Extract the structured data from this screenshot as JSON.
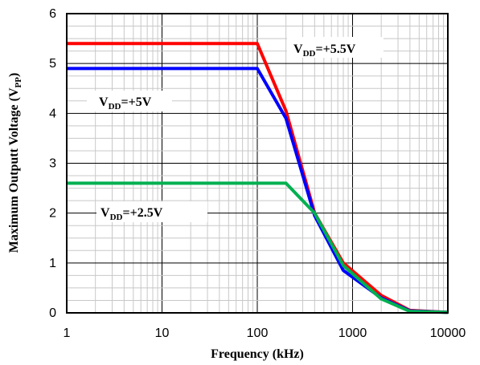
{
  "chart_data": {
    "type": "line",
    "xlabel": "Frequency (kHz)",
    "ylabel_main": "Maximum Outputt Voltage (V",
    "ylabel_sub": "PP",
    "ylabel_close": ")",
    "x_scale": "log",
    "xlim": [
      1,
      10000
    ],
    "ylim": [
      0,
      6
    ],
    "x_ticks": [
      1,
      10,
      100,
      1000,
      10000
    ],
    "x_tick_labels": [
      "1",
      "10",
      "100",
      "1000",
      "10000"
    ],
    "y_ticks": [
      0,
      1,
      2,
      3,
      4,
      5,
      6
    ],
    "y_tick_labels": [
      "0",
      "1",
      "2",
      "3",
      "4",
      "5",
      "6"
    ],
    "grid": true,
    "series": [
      {
        "color": "#ff0000",
        "x": [
          1,
          100,
          200,
          400,
          800,
          2000,
          4000,
          10000
        ],
        "y": [
          5.4,
          5.4,
          4.05,
          2.0,
          1.0,
          0.35,
          0.05,
          0.01
        ]
      },
      {
        "color": "#0000ff",
        "x": [
          1,
          100,
          200,
          400,
          800,
          2000,
          4000,
          10000
        ],
        "y": [
          4.9,
          4.9,
          3.9,
          1.95,
          0.85,
          0.3,
          0.04,
          0.01
        ]
      },
      {
        "color": "#00b050",
        "x": [
          1,
          200,
          400,
          800,
          2000,
          4000,
          10000
        ],
        "y": [
          2.6,
          2.6,
          2.0,
          0.95,
          0.28,
          0.03,
          0.01
        ]
      }
    ],
    "annotations": [
      {
        "main": "V",
        "sub": "DD",
        "rest": "=+5.5V"
      },
      {
        "main": "V",
        "sub": "DD",
        "rest": "=+5V"
      },
      {
        "main": "V",
        "sub": "DD",
        "rest": "=+2.5V"
      }
    ]
  }
}
